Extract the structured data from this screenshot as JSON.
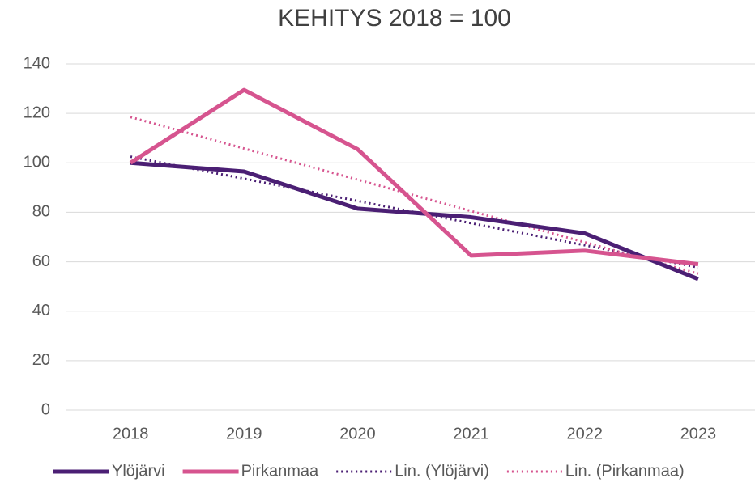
{
  "chart_data": {
    "type": "line",
    "title": "KEHITYS 2018 = 100",
    "categories": [
      "2018",
      "2019",
      "2020",
      "2021",
      "2022",
      "2023"
    ],
    "ylim": [
      0,
      140
    ],
    "yticks": [
      0,
      20,
      40,
      60,
      80,
      100,
      120,
      140
    ],
    "grid": true,
    "legend": "bottom",
    "series": [
      {
        "name": "Ylöjärvi",
        "color": "#4b1f74",
        "style": "solid",
        "values": [
          100,
          96.5,
          81.5,
          78,
          71.5,
          53
        ]
      },
      {
        "name": "Pirkanmaa",
        "color": "#d6548f",
        "style": "solid",
        "values": [
          100,
          129.5,
          105.5,
          62.5,
          64.5,
          59
        ]
      },
      {
        "name": "Lin. (Ylöjärvi)",
        "color": "#4b1f74",
        "style": "dotted",
        "values": [
          102.5,
          93.6,
          84.6,
          75.6,
          66.7,
          57.7
        ]
      },
      {
        "name": "Lin. (Pirkanmaa)",
        "color": "#d6548f",
        "style": "dotted",
        "values": [
          118.5,
          105.8,
          93.2,
          80.5,
          67.9,
          55.2
        ]
      }
    ]
  }
}
